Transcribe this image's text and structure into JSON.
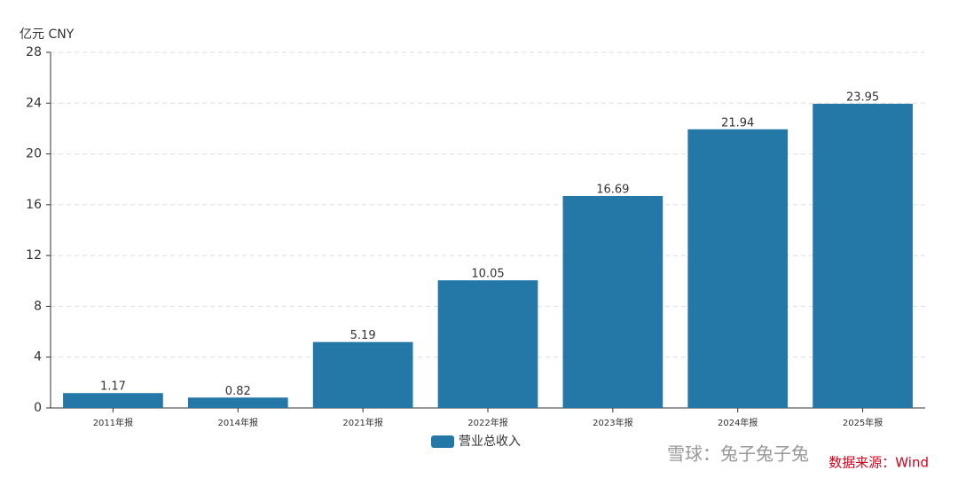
{
  "chart_data": {
    "type": "bar",
    "y_unit": "亿元  CNY",
    "categories": [
      "2011年报",
      "2014年报",
      "2021年报",
      "2022年报",
      "2023年报",
      "2024年报",
      "2025年报"
    ],
    "series": [
      {
        "name": "营业总收入",
        "color": "#2378a8",
        "values": [
          1.17,
          0.82,
          5.19,
          10.05,
          16.69,
          21.94,
          23.95
        ]
      }
    ],
    "ylim": [
      0,
      28
    ],
    "yticks": [
      0,
      4,
      8,
      12,
      16,
      20,
      24,
      28
    ],
    "grid": true,
    "watermark": "雪球：兔子兔子兔",
    "source": "数据来源：Wind"
  }
}
